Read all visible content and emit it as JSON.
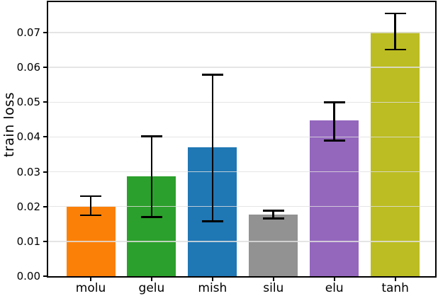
{
  "figure": {
    "background": "#ffffff",
    "spine_color": "#000000",
    "grid_color": "#dfdfdf"
  },
  "chart_data": {
    "type": "bar",
    "title": "",
    "xlabel": "",
    "ylabel": "train loss",
    "categories": [
      "molu",
      "gelu",
      "mish",
      "silu",
      "elu",
      "tanh"
    ],
    "values": [
      0.02,
      0.0286,
      0.037,
      0.0177,
      0.0447,
      0.0703
    ],
    "error_low": [
      0.0175,
      0.017,
      0.0158,
      0.0166,
      0.039,
      0.0651
    ],
    "error_high": [
      0.023,
      0.0402,
      0.0579,
      0.0188,
      0.05,
      0.0755
    ],
    "bar_colors": [
      "#fb8008",
      "#2ca02c",
      "#1f77b4",
      "#929292",
      "#9467bd",
      "#bcbd22"
    ],
    "error_color": "#000000",
    "y_ticks": [
      0.0,
      0.01,
      0.02,
      0.03,
      0.04,
      0.05,
      0.06,
      0.07
    ],
    "y_tick_labels": [
      "0.00",
      "0.01",
      "0.02",
      "0.03",
      "0.04",
      "0.05",
      "0.06",
      "0.07"
    ],
    "ylim": [
      0,
      0.07875
    ],
    "grid": "horizontal, drawn above bars",
    "legend": "none"
  }
}
